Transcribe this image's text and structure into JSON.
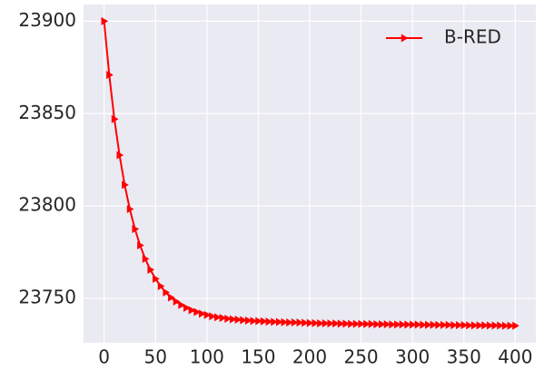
{
  "chart_data": {
    "type": "line",
    "x": [
      0,
      5,
      10,
      15,
      20,
      25,
      30,
      35,
      40,
      45,
      50,
      55,
      60,
      65,
      70,
      75,
      80,
      85,
      90,
      95,
      100,
      105,
      110,
      115,
      120,
      125,
      130,
      135,
      140,
      145,
      150,
      155,
      160,
      165,
      170,
      175,
      180,
      185,
      190,
      195,
      200,
      205,
      210,
      215,
      220,
      225,
      230,
      235,
      240,
      245,
      250,
      255,
      260,
      265,
      270,
      275,
      280,
      285,
      290,
      295,
      300,
      305,
      310,
      315,
      320,
      325,
      330,
      335,
      340,
      345,
      350,
      355,
      360,
      365,
      370,
      375,
      380,
      385,
      390,
      395,
      400
    ],
    "series": [
      {
        "name": "B-RED",
        "color": "#ff0000",
        "values": [
          23900.0,
          23870.9,
          23847.0,
          23827.5,
          23811.4,
          23798.3,
          23787.5,
          23778.7,
          23771.4,
          23765.5,
          23760.6,
          23756.6,
          23753.2,
          23750.5,
          23748.3,
          23746.4,
          23744.9,
          23743.6,
          23742.6,
          23741.7,
          23741.0,
          23740.3,
          23739.8,
          23739.4,
          23739.0,
          23738.7,
          23738.5,
          23738.2,
          23738.0,
          23737.8,
          23737.7,
          23737.6,
          23737.4,
          23737.3,
          23737.2,
          23737.1,
          23737.0,
          23737.0,
          23736.9,
          23736.8,
          23736.7,
          23736.6,
          23736.5,
          23736.5,
          23736.4,
          23736.4,
          23736.3,
          23736.3,
          23736.2,
          23736.2,
          23736.2,
          23736.1,
          23736.1,
          23736.0,
          23736.0,
          23736.0,
          23735.9,
          23735.9,
          23735.9,
          23735.8,
          23735.8,
          23735.8,
          23735.7,
          23735.7,
          23735.7,
          23735.6,
          23735.6,
          23735.6,
          23735.5,
          23735.5,
          23735.5,
          23735.4,
          23735.4,
          23735.4,
          23735.4,
          23735.3,
          23735.3,
          23735.3,
          23735.2,
          23735.2,
          23735.2
        ]
      }
    ],
    "xlim": [
      -20,
      420
    ],
    "xticks": [
      0,
      50,
      100,
      150,
      200,
      250,
      300,
      350,
      400
    ],
    "ylim": [
      23726,
      23909
    ],
    "yticks": [
      23750,
      23800,
      23850,
      23900
    ],
    "grid": true,
    "legend": "upper right"
  }
}
